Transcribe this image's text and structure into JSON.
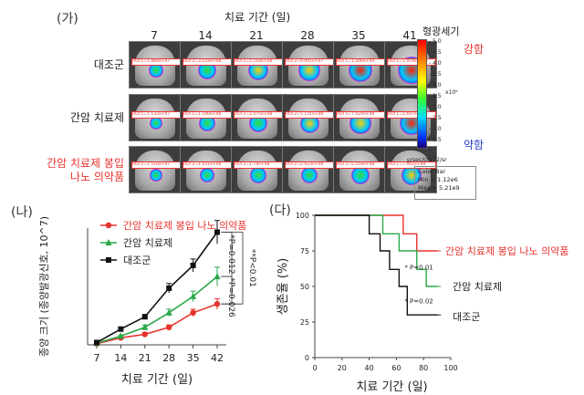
{
  "panel_ga": {
    "label": "(가)",
    "axis_title": "치료 기간 (일)",
    "days": [
      "7",
      "14",
      "21",
      "28",
      "35",
      "41"
    ],
    "groups": [
      {
        "name": "대조군",
        "color": "#222222",
        "rois": [
          "ROI 1=1.884e+07",
          "ROI 2=3.224e+08",
          "ROI 2=5.218e+08",
          "ROI 2=9.941e+07",
          "ROI 1=1.206e+09",
          "ROI 1=1.979e+09"
        ],
        "intensity": [
          0.25,
          0.45,
          0.55,
          0.6,
          0.75,
          0.95
        ]
      },
      {
        "name": "간암 치료제",
        "color": "#222222",
        "rois": [
          "ROI 1=1.132e+07",
          "ROI 1=1.190e+08",
          "ROI 2=2.075e+08",
          "ROI 2=5.131e+08",
          "ROI 1=7.024e+08",
          "ROI 1=1.647e+09"
        ],
        "intensity": [
          0.2,
          0.35,
          0.45,
          0.5,
          0.6,
          0.75
        ]
      },
      {
        "name": "간암 치료제 봉입\n나노 의약품",
        "color": "#e8332e",
        "rois": [
          "ROI 2=1.518e+07",
          "ROI 2=1.031e+08",
          "ROI 2=1.74e+08",
          "ROI 2=2.923e+08",
          "ROI 2=5.218e+08",
          "ROI 1=7.061e+08"
        ],
        "intensity": [
          0.15,
          0.25,
          0.35,
          0.4,
          0.45,
          0.55
        ]
      }
    ],
    "colorbar": {
      "title": "형광세기",
      "high_label": "강함",
      "low_label": "약함",
      "ticks": [
        "5.0",
        "4.5",
        "4.0",
        "3.5",
        "3.0",
        "2.5",
        "2.0",
        "1.5",
        "1.0",
        "0.5"
      ],
      "exponent": "x10⁹",
      "unit": "p/sec/cm^2/sr",
      "info_title": "Color Bar",
      "info_min": "Min = 1.12e6",
      "info_max": "Max = 5.21e9"
    }
  },
  "chart_data": [
    {
      "panel_label": "(나)",
      "type": "line",
      "xlabel": "치료 기간 (일)",
      "ylabel": "종양 크기 (종양발광신호, 10^7)",
      "categories": [
        "7",
        "14",
        "21",
        "28",
        "35",
        "42"
      ],
      "ylim": [
        0,
        200
      ],
      "series": [
        {
          "name": "간암 치료제 봉입 나노 의약품",
          "color": "#e8332e",
          "marker": "circle",
          "values": [
            2,
            12,
            18,
            30,
            55,
            70
          ],
          "errors": [
            1,
            2,
            3,
            4,
            6,
            9
          ]
        },
        {
          "name": "간암 치료제",
          "color": "#2aa84a",
          "marker": "triangle",
          "values": [
            3,
            15,
            30,
            55,
            83,
            117
          ],
          "errors": [
            1,
            2,
            4,
            6,
            9,
            16
          ]
        },
        {
          "name": "대조군",
          "color": "#111111",
          "marker": "square",
          "values": [
            4,
            27,
            48,
            97,
            136,
            193
          ],
          "errors": [
            1,
            3,
            4,
            8,
            11,
            20
          ]
        }
      ],
      "annotations": [
        "**P<0.01",
        "*P=0.012",
        "*P=0.026"
      ]
    },
    {
      "panel_label": "(다)",
      "type": "line",
      "xlabel": "치료 기간 (일)",
      "ylabel": "생존율 (%)",
      "xlim": [
        0,
        100
      ],
      "ylim": [
        0,
        100
      ],
      "xticks": [
        "0",
        "20",
        "40",
        "60",
        "80",
        "100"
      ],
      "yticks": [
        "0",
        "25",
        "50",
        "75",
        "100"
      ],
      "series": [
        {
          "name": "간암 치료제 봉입 나노 의약품",
          "color": "#e8332e",
          "x": [
            0,
            65,
            65,
            75,
            75,
            85,
            85,
            90
          ],
          "y": [
            100,
            100,
            87,
            87,
            75,
            75,
            75,
            75
          ]
        },
        {
          "name": "간암 치료제",
          "color": "#2aa84a",
          "x": [
            0,
            50,
            50,
            62,
            62,
            75,
            75,
            82,
            82,
            90
          ],
          "y": [
            100,
            100,
            87,
            87,
            75,
            75,
            62,
            62,
            50,
            50
          ]
        },
        {
          "name": "대조군",
          "color": "#111111",
          "x": [
            0,
            40,
            40,
            48,
            48,
            55,
            55,
            62,
            62,
            68,
            68,
            90
          ],
          "y": [
            100,
            100,
            87,
            87,
            75,
            75,
            62,
            62,
            50,
            50,
            30,
            30
          ]
        }
      ],
      "annotations": [
        "* P=0.01",
        "* P=0.02"
      ]
    }
  ]
}
